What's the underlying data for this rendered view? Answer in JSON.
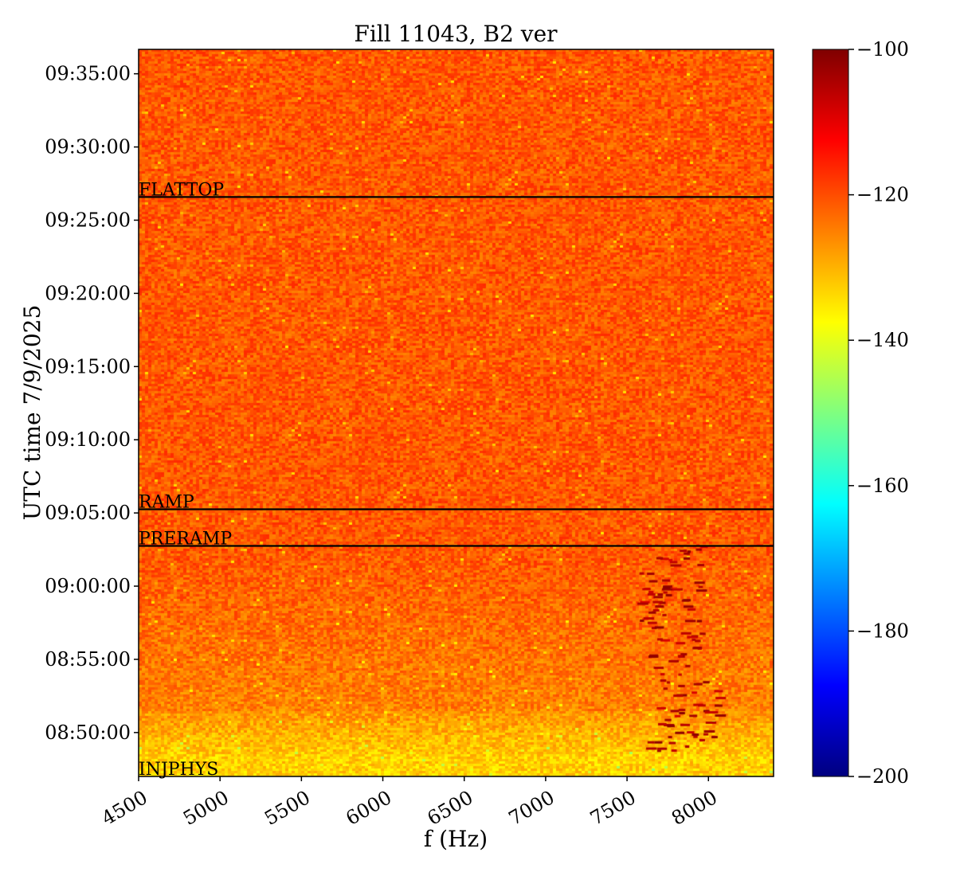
{
  "chart_data": {
    "type": "heatmap",
    "title": "Fill 11043, B2 ver",
    "xlabel": "f (Hz)",
    "ylabel": "UTC time 7/9/2025",
    "xlim": [
      4500,
      8400
    ],
    "x_ticks": [
      4500,
      5000,
      5500,
      6000,
      6500,
      7000,
      7500,
      8000
    ],
    "y_range": [
      "08:47:00",
      "09:36:40"
    ],
    "y_ticks": [
      "08:50:00",
      "08:55:00",
      "09:00:00",
      "09:05:00",
      "09:10:00",
      "09:15:00",
      "09:20:00",
      "09:25:00",
      "09:30:00",
      "09:35:00"
    ],
    "colorbar": {
      "colormap": "jet",
      "range": [
        -200,
        -100
      ],
      "ticks": [
        -100,
        -120,
        -140,
        -160,
        -180,
        -200
      ]
    },
    "levels": {
      "background": -121,
      "early_segment": -133,
      "feature_peak": -101
    },
    "feature": {
      "description_freq_range_hz": [
        7600,
        8000
      ],
      "time_range": [
        "08:48:30",
        "09:02:50"
      ]
    },
    "annotations": [
      {
        "label": "FLATTOP",
        "time": "09:26:35"
      },
      {
        "label": "RAMP",
        "time": "09:05:15"
      },
      {
        "label": "PRERAMP",
        "time": "09:02:45"
      },
      {
        "label": "INJPHYS",
        "time": "08:47:00"
      }
    ],
    "grid": false
  }
}
